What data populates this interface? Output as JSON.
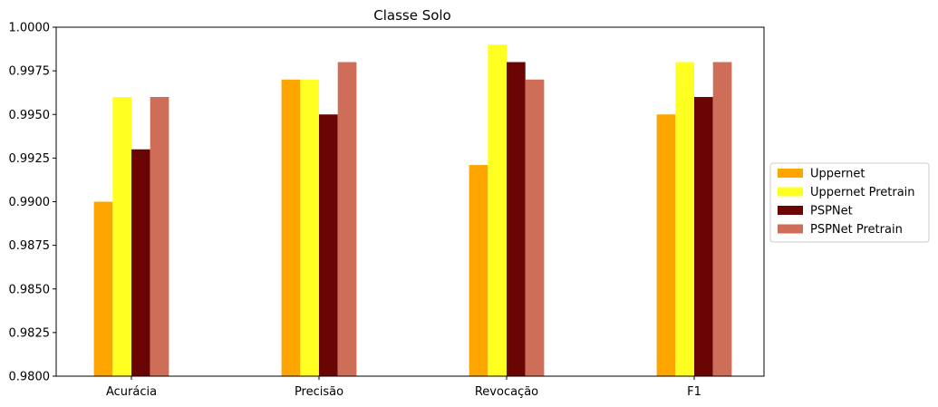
{
  "chart_data": {
    "type": "bar",
    "title": "Classe Solo",
    "xlabel": "",
    "ylabel": "",
    "categories": [
      "Acurácia",
      "Precisão",
      "Revocação",
      "F1"
    ],
    "ylim": [
      0.98,
      1.0
    ],
    "yticks": [
      0.98,
      0.9825,
      0.985,
      0.9875,
      0.99,
      0.9925,
      0.995,
      0.9975,
      1.0
    ],
    "ytick_labels": [
      "0.9800",
      "0.9825",
      "0.9850",
      "0.9875",
      "0.9900",
      "0.9925",
      "0.9950",
      "0.9975",
      "1.0000"
    ],
    "grid": false,
    "legend_position": "right",
    "series": [
      {
        "name": "Uppernet",
        "color": "#FFA500",
        "values": [
          0.99,
          0.997,
          0.9921,
          0.995
        ]
      },
      {
        "name": "Uppernet Pretrain",
        "color": "#FFFF22",
        "values": [
          0.996,
          0.997,
          0.999,
          0.998
        ]
      },
      {
        "name": "PSPNet",
        "color": "#6B0504",
        "values": [
          0.993,
          0.995,
          0.998,
          0.996
        ]
      },
      {
        "name": "PSPNet Pretrain",
        "color": "#CE6E58",
        "values": [
          0.996,
          0.998,
          0.997,
          0.998
        ]
      }
    ]
  }
}
